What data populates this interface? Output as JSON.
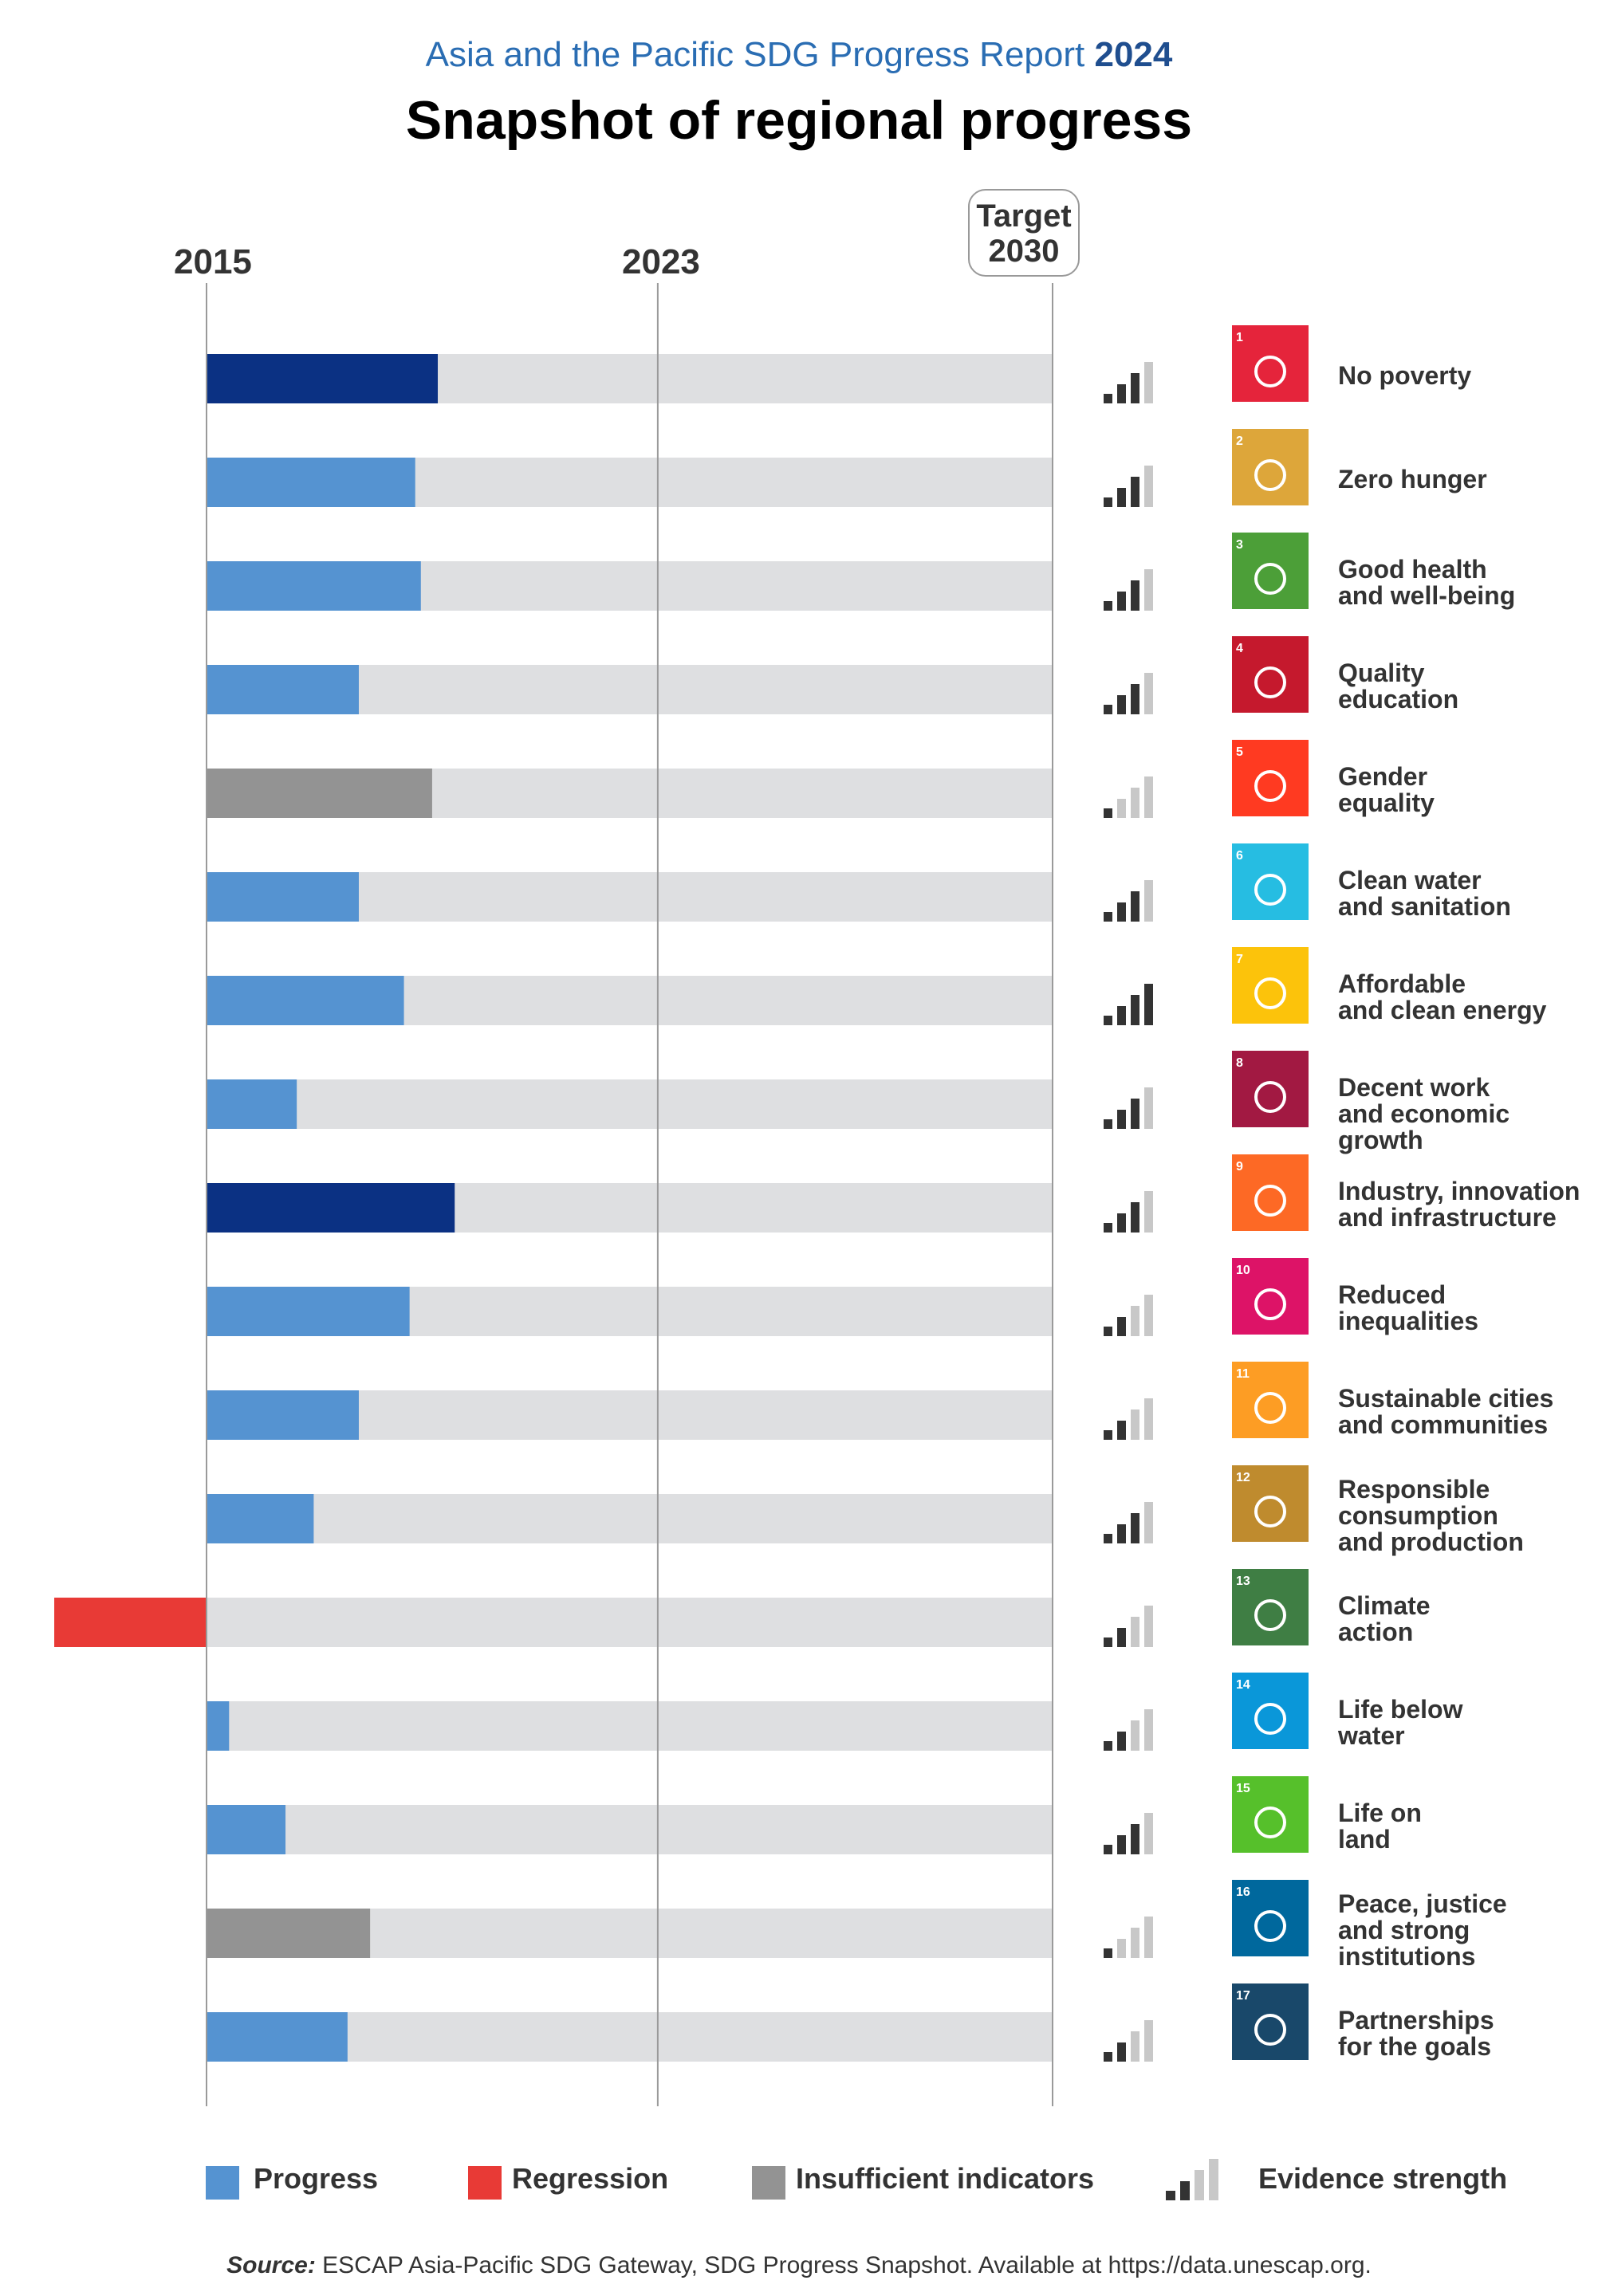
{
  "header": {
    "subtitle_main": "Asia and the Pacific SDG Progress Report",
    "subtitle_year": "2024",
    "title": "Snapshot of regional progress"
  },
  "axis": {
    "start_label": "2015",
    "mid_label": "2023",
    "target_line1": "Target",
    "target_line2": "2030"
  },
  "colors": {
    "progress": "#5593d1",
    "progress_strong": "#0b3183",
    "regression": "#e83a36",
    "insufficient": "#939393",
    "track": "#dedfe1",
    "evidence_dark": "#333333",
    "evidence_light": "#c8c8c8"
  },
  "chart_data": {
    "type": "bar",
    "orientation": "horizontal",
    "x_range": [
      2015,
      2030
    ],
    "reference_lines": [
      2015,
      2023,
      2030
    ],
    "goals": [
      {
        "number": "1",
        "name_lines": [
          "No poverty"
        ],
        "icon_color": "#e5243b",
        "icon": "people-icon",
        "value": 2019.1,
        "status": "progress-strong",
        "evidence": 3
      },
      {
        "number": "2",
        "name_lines": [
          "Zero hunger"
        ],
        "icon_color": "#dda63a",
        "icon": "bowl-icon",
        "value": 2018.7,
        "status": "progress",
        "evidence": 3
      },
      {
        "number": "3",
        "name_lines": [
          "Good health",
          "and well-being"
        ],
        "icon_color": "#4c9f38",
        "icon": "heartbeat-icon",
        "value": 2018.8,
        "status": "progress",
        "evidence": 3
      },
      {
        "number": "4",
        "name_lines": [
          "Quality",
          "education"
        ],
        "icon_color": "#c5192d",
        "icon": "book-icon",
        "value": 2017.7,
        "status": "progress",
        "evidence": 3
      },
      {
        "number": "5",
        "name_lines": [
          "Gender",
          "equality"
        ],
        "icon_color": "#ff3a21",
        "icon": "gender-icon",
        "value": 2019.0,
        "status": "insufficient",
        "evidence": 1
      },
      {
        "number": "6",
        "name_lines": [
          "Clean water",
          "and sanitation"
        ],
        "icon_color": "#26bde2",
        "icon": "water-drop-icon",
        "value": 2017.7,
        "status": "progress",
        "evidence": 3
      },
      {
        "number": "7",
        "name_lines": [
          "Affordable",
          "and clean energy"
        ],
        "icon_color": "#fcc30b",
        "icon": "sun-icon",
        "value": 2018.5,
        "status": "progress",
        "evidence": 4
      },
      {
        "number": "8",
        "name_lines": [
          "Decent work",
          "and economic growth"
        ],
        "icon_color": "#a21942",
        "icon": "growth-chart-icon",
        "value": 2016.6,
        "status": "progress",
        "evidence": 3
      },
      {
        "number": "9",
        "name_lines": [
          "Industry, innovation",
          "and infrastructure"
        ],
        "icon_color": "#fd6925",
        "icon": "cubes-icon",
        "value": 2019.4,
        "status": "progress-strong",
        "evidence": 3
      },
      {
        "number": "10",
        "name_lines": [
          "Reduced",
          "inequalities"
        ],
        "icon_color": "#dd1367",
        "icon": "equality-icon",
        "value": 2018.6,
        "status": "progress",
        "evidence": 2
      },
      {
        "number": "11",
        "name_lines": [
          "Sustainable cities",
          "and communities"
        ],
        "icon_color": "#fd9d24",
        "icon": "city-icon",
        "value": 2017.7,
        "status": "progress",
        "evidence": 2
      },
      {
        "number": "12",
        "name_lines": [
          "Responsible",
          "consumption",
          "and production"
        ],
        "icon_color": "#bf8b2e",
        "icon": "infinity-icon",
        "value": 2016.9,
        "status": "progress",
        "evidence": 3
      },
      {
        "number": "13",
        "name_lines": [
          "Climate",
          "action"
        ],
        "icon_color": "#3f7e44",
        "icon": "eye-globe-icon",
        "value": 2012.3,
        "status": "regression",
        "evidence": 2
      },
      {
        "number": "14",
        "name_lines": [
          "Life below",
          "water"
        ],
        "icon_color": "#0a97d9",
        "icon": "fish-icon",
        "value": 2015.4,
        "status": "progress",
        "evidence": 2
      },
      {
        "number": "15",
        "name_lines": [
          "Life on",
          "land"
        ],
        "icon_color": "#56c02b",
        "icon": "tree-icon",
        "value": 2016.4,
        "status": "progress",
        "evidence": 3
      },
      {
        "number": "16",
        "name_lines": [
          "Peace, justice",
          "and strong",
          "institutions"
        ],
        "icon_color": "#00689d",
        "icon": "dove-icon",
        "value": 2017.9,
        "status": "insufficient",
        "evidence": 1
      },
      {
        "number": "17",
        "name_lines": [
          "Partnerships",
          "for the goals"
        ],
        "icon_color": "#19486a",
        "icon": "flower-icon",
        "value": 2017.5,
        "status": "progress",
        "evidence": 2
      }
    ]
  },
  "legend": {
    "progress": "Progress",
    "regression": "Regression",
    "insufficient": "Insufficient indicators",
    "evidence": "Evidence strength"
  },
  "source": {
    "label": "Source:",
    "text": "ESCAP Asia-Pacific SDG Gateway, SDG Progress Snapshot. Available at https://data.unescap.org."
  }
}
